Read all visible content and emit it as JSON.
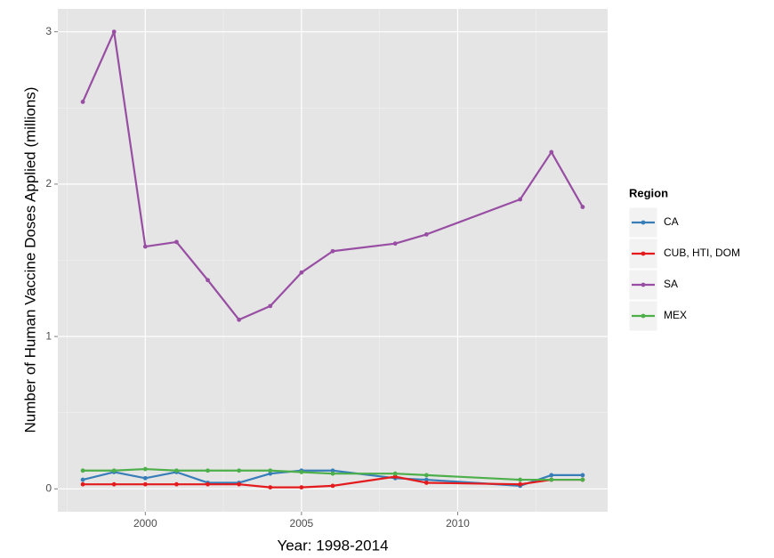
{
  "chart_data": {
    "type": "line",
    "x_label": "Year: 1998-2014",
    "y_label": "Number of Human Vaccine Doses Applied (millions)",
    "legend_title": "Region",
    "legend_position": "right",
    "grid": true,
    "x": [
      1998,
      1999,
      2000,
      2001,
      2002,
      2003,
      2004,
      2005,
      2006,
      2008,
      2009,
      2012,
      2013,
      2014
    ],
    "xlim": [
      1997.2,
      2014.8
    ],
    "xticks": [
      2000,
      2005,
      2010
    ],
    "ylim": [
      -0.15,
      3.15
    ],
    "yticks": [
      0,
      1,
      2,
      3
    ],
    "series": [
      {
        "name": "CA",
        "color": "#377eb8",
        "values": [
          0.06,
          0.11,
          0.07,
          0.11,
          0.04,
          0.04,
          0.1,
          0.12,
          0.12,
          0.07,
          0.06,
          0.02,
          0.09,
          0.09
        ]
      },
      {
        "name": "CUB, HTI, DOM",
        "color": "#e41a1c",
        "values": [
          0.03,
          0.03,
          0.03,
          0.03,
          0.03,
          0.03,
          0.01,
          0.01,
          0.02,
          0.08,
          0.04,
          0.03,
          0.06,
          0.06
        ]
      },
      {
        "name": "SA",
        "color": "#984ea3",
        "values": [
          2.54,
          3.0,
          1.59,
          1.62,
          1.37,
          1.11,
          1.2,
          1.42,
          1.56,
          1.61,
          1.67,
          1.9,
          2.21,
          1.85
        ]
      },
      {
        "name": "MEX",
        "color": "#4daf4a",
        "values": [
          0.12,
          0.12,
          0.13,
          0.12,
          0.12,
          0.12,
          0.12,
          0.11,
          0.1,
          0.1,
          0.09,
          0.06,
          0.06,
          0.06
        ]
      }
    ]
  }
}
